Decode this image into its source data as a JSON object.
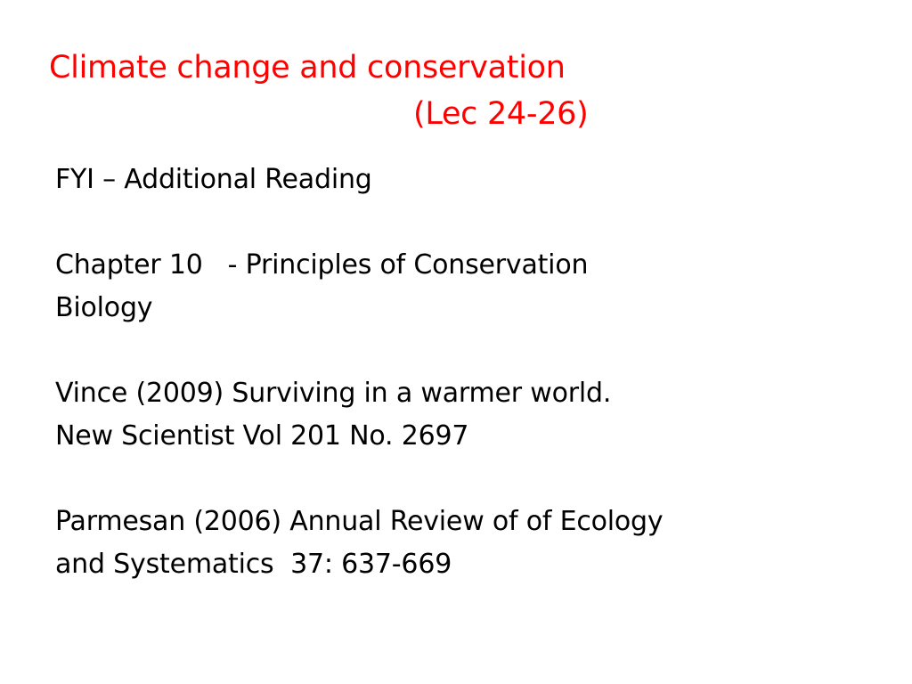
{
  "slide": {
    "title_line_1": "Climate change and conservation",
    "title_line_2": "(Lec 24-26)",
    "title_color": "#ff0000",
    "heading": "FYI – Additional Reading",
    "refs": [
      {
        "line_1": "Chapter 10   - Principles of Conservation",
        "line_2": "Biology"
      },
      {
        "line_1": "Vince (2009) Surviving in a warmer world.",
        "line_2": "New Scientist Vol 201 No. 2697"
      },
      {
        "line_1": "Parmesan (2006) Annual Review of of Ecology",
        "line_2": "and Systematics  37: 637-669"
      }
    ]
  }
}
